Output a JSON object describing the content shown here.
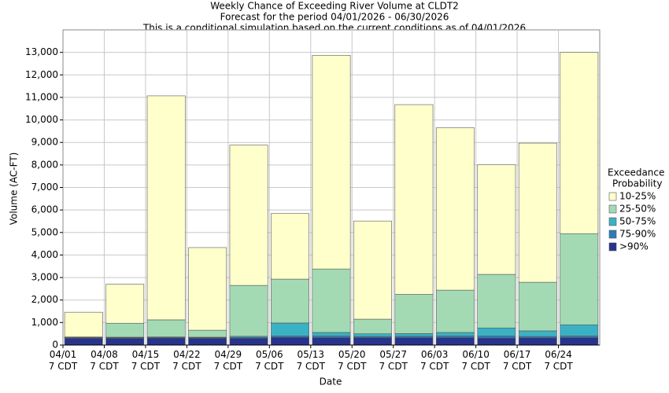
{
  "chart_data": {
    "type": "bar",
    "stacked": true,
    "title": [
      "Weekly Chance of Exceeding River Volume at CLDT2",
      "Forecast for the period 04/01/2026 - 06/30/2026",
      "This is a conditional simulation based on the current conditions as of 04/01/2026"
    ],
    "x_label": "Date",
    "y_label": "Volume (AC-FT)",
    "legend_title": [
      "Exceedance",
      "Probability"
    ],
    "legend_position": "right",
    "categories": [
      "04/01 7 CDT",
      "04/08 7 CDT",
      "04/15 7 CDT",
      "04/22 7 CDT",
      "04/29 7 CDT",
      "05/06 7 CDT",
      "05/13 7 CDT",
      "05/20 7 CDT",
      "05/27 7 CDT",
      "06/03 7 CDT",
      "06/10 7 CDT",
      "06/17 7 CDT",
      "06/24 7 CDT"
    ],
    "series": [
      {
        "name": ">90%",
        "color": "#27338c",
        "values": [
          300,
          300,
          310,
          300,
          300,
          340,
          330,
          330,
          330,
          330,
          310,
          320,
          330
        ]
      },
      {
        "name": "75-90%",
        "color": "#2c7cba",
        "values": [
          30,
          30,
          30,
          30,
          40,
          60,
          70,
          50,
          60,
          70,
          90,
          60,
          70
        ]
      },
      {
        "name": "50-75%",
        "color": "#3bb1c4",
        "values": [
          10,
          20,
          20,
          20,
          50,
          580,
          160,
          120,
          120,
          160,
          360,
          250,
          500
        ]
      },
      {
        "name": "25-50%",
        "color": "#a3dab3",
        "values": [
          20,
          620,
          760,
          310,
          2260,
          1950,
          2820,
          650,
          1740,
          1880,
          2380,
          2160,
          4050
        ]
      },
      {
        "name": "10-25%",
        "color": "#ffffcc",
        "values": [
          1100,
          1730,
          9950,
          3670,
          6230,
          2910,
          9490,
          4360,
          8430,
          7210,
          4870,
          6180,
          8050
        ]
      }
    ],
    "ylim": [
      0,
      14000
    ],
    "yticks": [
      0,
      {
        "value": 1000,
        "label": "1,000"
      },
      {
        "value": 2000,
        "label": "2,000"
      },
      {
        "value": 3000,
        "label": "3,000"
      },
      {
        "value": 4000,
        "label": "4,000"
      },
      {
        "value": 5000,
        "label": "5,000"
      },
      {
        "value": 6000,
        "label": "6,000"
      },
      {
        "value": 7000,
        "label": "7,000"
      },
      {
        "value": 8000,
        "label": "8,000"
      },
      {
        "value": 9000,
        "label": "9,000"
      },
      {
        "value": 10000,
        "label": "10,000"
      },
      {
        "value": 11000,
        "label": "11,000"
      },
      {
        "value": 12000,
        "label": "12,000"
      },
      {
        "value": 13000,
        "label": "13,000"
      }
    ],
    "grid": true
  }
}
